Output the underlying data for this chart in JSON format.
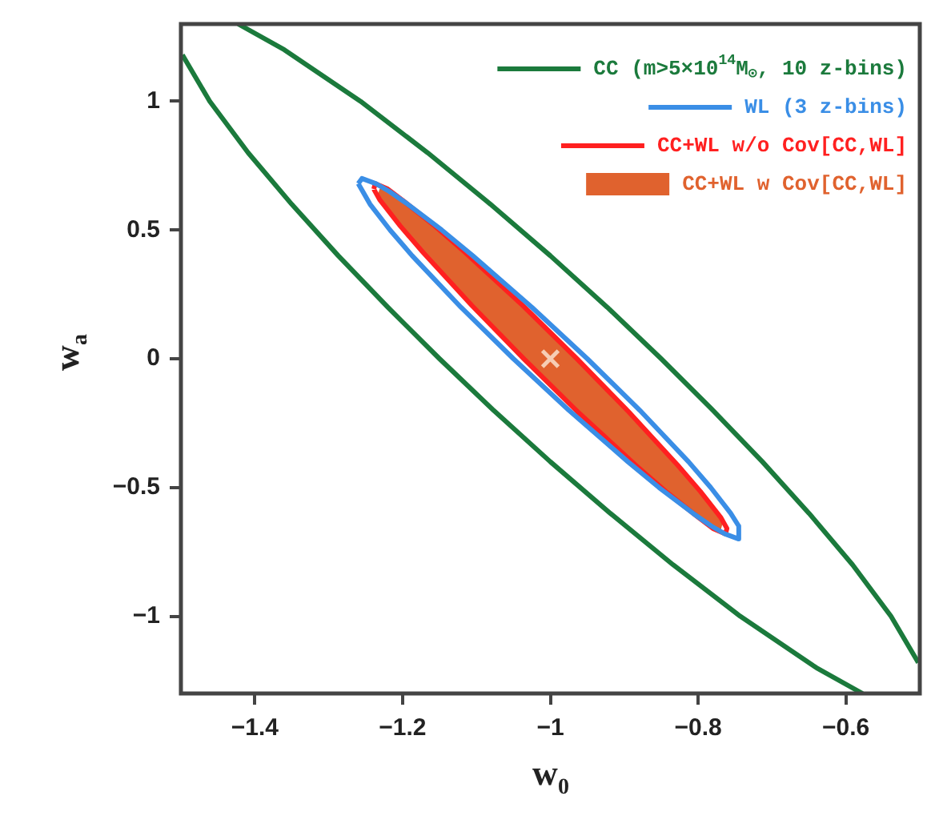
{
  "chart_data": {
    "type": "line",
    "xlabel": "w$_{0}$",
    "ylabel": "w$_{a}$",
    "xlim": [
      -1.5,
      -0.5
    ],
    "ylim": [
      -1.3,
      1.3
    ],
    "xticks": [
      -1.4,
      -1.2,
      -1,
      -0.8,
      -0.6
    ],
    "yticks": [
      -1,
      -0.5,
      0,
      0.5,
      1
    ],
    "grid": false,
    "legend": "top right",
    "marker": "none",
    "line_style": "solid",
    "series": [
      {
        "name": "CC (m>5×10$^{14}$M$_{⊙}$, 10 z-bins)",
        "color": "#1b7a3c",
        "type": "line",
        "x": [
          -1.4225,
          -1.36,
          -1.257,
          -1.166,
          -1.081,
          -1.0,
          -0.923,
          -0.85,
          -0.78,
          -0.713,
          -0.65,
          -0.591,
          -0.539,
          -0.502,
          null,
          -1.498,
          -1.461,
          -1.409,
          -1.35,
          -1.287,
          -1.22,
          -1.15,
          -1.077,
          -1.0,
          -0.919,
          -0.834,
          -0.743,
          -0.64,
          -0.5775
        ],
        "values": [
          1.3,
          1.2,
          1.0,
          0.8,
          0.6,
          0.4,
          0.2,
          0,
          -0.2,
          -0.4,
          -0.6,
          -0.8,
          -1.0,
          -1.18,
          null,
          1.18,
          1.0,
          0.8,
          0.6,
          0.4,
          0.2,
          0,
          -0.2,
          -0.4,
          -0.6,
          -0.8,
          -1.0,
          -1.2,
          -1.3
        ]
      },
      {
        "name": "WL (3 z-bins)",
        "color": "#3a8ee6",
        "type": "line",
        "x": [
          -1.26,
          -1.255,
          -1.236,
          -1.218,
          -1.193,
          -1.147,
          -1.105,
          -1.025,
          -0.95,
          -0.879,
          -0.813,
          -0.783,
          -0.756,
          -0.745,
          -0.745,
          null,
          -0.745,
          -0.764,
          -0.782,
          -0.807,
          -0.853,
          -0.895,
          -0.975,
          -1.05,
          -1.121,
          -1.187,
          -1.217,
          -1.244,
          -1.26
        ],
        "values": [
          0.68,
          0.7,
          0.68,
          0.65,
          0.6,
          0.5,
          0.4,
          0.2,
          0,
          -0.2,
          -0.4,
          -0.5,
          -0.6,
          -0.65,
          -0.7,
          null,
          -0.7,
          -0.68,
          -0.65,
          -0.6,
          -0.5,
          -0.4,
          -0.2,
          0,
          0.2,
          0.4,
          0.5,
          0.6,
          0.68
        ]
      },
      {
        "name": "CC+WL w/o Cov[CC,WL]",
        "color": "#ff2020",
        "type": "line",
        "x": [
          -1.239,
          -1.237,
          -1.22,
          -1.201,
          -1.156,
          -1.115,
          -1.037,
          -0.964,
          -0.894,
          -0.828,
          -0.797,
          -0.769,
          -0.761,
          -0.763,
          null,
          -0.763,
          -0.78,
          -0.799,
          -0.844,
          -0.885,
          -0.963,
          -1.036,
          -1.106,
          -1.172,
          -1.203,
          -1.231,
          -1.239
        ],
        "values": [
          0.659,
          0.68,
          0.659,
          0.618,
          0.515,
          0.412,
          0.206,
          0,
          -0.206,
          -0.412,
          -0.515,
          -0.618,
          -0.659,
          -0.68,
          null,
          -0.68,
          -0.659,
          -0.618,
          -0.515,
          -0.412,
          -0.206,
          0,
          0.206,
          0.412,
          0.515,
          0.618,
          0.659
        ]
      },
      {
        "name": "CC+WL w Cov[CC,WL]",
        "color": "#e0622e",
        "type": "area",
        "x": [
          -1.23,
          -1.214,
          -1.195,
          -1.151,
          -1.112,
          -1.036,
          -0.965,
          -0.897,
          -0.833,
          -0.803,
          -0.776,
          -0.768,
          -0.77,
          -0.786,
          -0.805,
          -0.849,
          -0.888,
          -0.964,
          -1.035,
          -1.103,
          -1.167,
          -1.197,
          -1.224,
          -1.232,
          -1.23
        ],
        "values": [
          0.66,
          0.64,
          0.6,
          0.5,
          0.4,
          0.2,
          0,
          -0.2,
          -0.4,
          -0.5,
          -0.6,
          -0.64,
          -0.66,
          -0.64,
          -0.6,
          -0.5,
          -0.4,
          -0.2,
          0,
          0.2,
          0.4,
          0.5,
          0.6,
          0.64,
          0.66
        ]
      },
      {
        "color": "#f6cdb4",
        "type": "scatter",
        "marker": "cross",
        "x": [
          -1
        ],
        "values": [
          0
        ]
      }
    ]
  }
}
